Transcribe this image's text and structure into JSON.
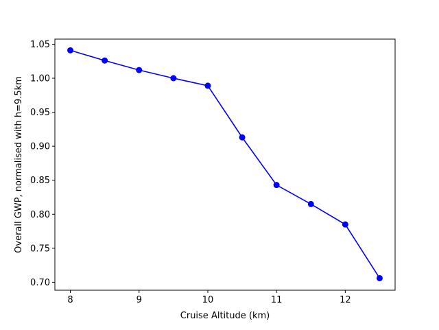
{
  "chart_data": {
    "type": "line",
    "title": "",
    "xlabel": "Cruise Altitude (km)",
    "ylabel": "Overall GWP, normalised with h=9.5km",
    "xlim": [
      7.775,
      12.725
    ],
    "ylim": [
      0.6883,
      1.0575
    ],
    "xticks": [
      8,
      9,
      10,
      11,
      12
    ],
    "xtick_labels": [
      "8",
      "9",
      "10",
      "11",
      "12"
    ],
    "yticks": [
      0.7,
      0.75,
      0.8,
      0.85,
      0.9,
      0.95,
      1.0,
      1.05
    ],
    "ytick_labels": [
      "0.70",
      "0.75",
      "0.80",
      "0.85",
      "0.90",
      "0.95",
      "1.00",
      "1.05"
    ],
    "grid": false,
    "series": [
      {
        "color": "#0000ff",
        "marker": "circle",
        "x": [
          8,
          8.5,
          9,
          9.5,
          10,
          10.5,
          11,
          11.5,
          12,
          12.5
        ],
        "y": [
          1.041,
          1.026,
          1.012,
          1.0,
          0.989,
          0.913,
          0.843,
          0.815,
          0.785,
          0.706
        ]
      }
    ]
  }
}
